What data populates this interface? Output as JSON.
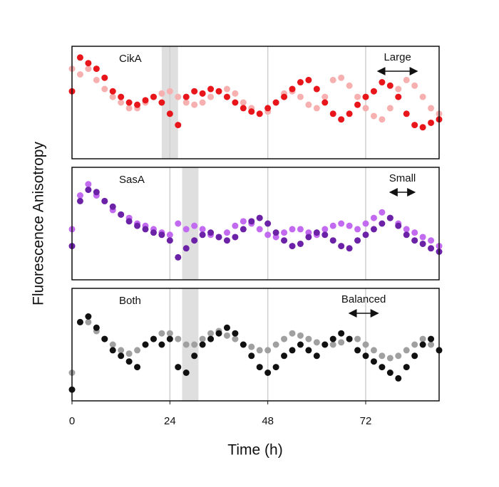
{
  "xlabel": "Time (h)",
  "ylabel": "Fluorescence Anisotropy",
  "chart_data": [
    {
      "type": "scatter",
      "title": "CikA",
      "xlim": [
        0,
        90
      ],
      "ylim": [
        0,
        1
      ],
      "xticks": [
        0,
        24,
        48,
        72
      ],
      "show_xtick_labels": false,
      "grid": true,
      "shade": [
        22,
        26
      ],
      "annotation": {
        "text": "Large",
        "x": [
          75,
          84.6
        ]
      },
      "x": [
        0,
        2,
        4,
        6,
        8,
        10,
        12,
        14,
        16,
        18,
        20,
        22,
        24,
        26,
        28,
        30,
        32,
        34,
        36,
        38,
        40,
        42,
        44,
        46,
        48,
        50,
        52,
        54,
        56,
        58,
        60,
        62,
        64,
        66,
        68,
        70,
        72,
        74,
        76,
        78,
        80,
        82,
        84,
        86,
        88,
        90
      ],
      "series": [
        {
          "color": "#f7b0b0",
          "values": [
            0.8,
            0.75,
            0.8,
            0.7,
            0.62,
            0.55,
            0.5,
            0.45,
            0.45,
            0.5,
            0.55,
            0.58,
            0.6,
            0.55,
            0.5,
            0.48,
            0.5,
            0.55,
            0.6,
            0.62,
            0.58,
            0.5,
            0.45,
            0.4,
            0.42,
            0.5,
            0.58,
            0.6,
            0.55,
            0.48,
            0.45,
            0.55,
            0.7,
            0.72,
            0.65,
            0.55,
            0.45,
            0.38,
            0.35,
            0.45,
            0.62,
            0.7,
            0.65,
            0.55,
            0.45,
            0.4
          ]
        },
        {
          "color": "#e8151b",
          "values": [
            0.6,
            0.9,
            0.85,
            0.8,
            0.72,
            0.6,
            0.55,
            0.5,
            0.48,
            0.52,
            0.55,
            0.5,
            0.4,
            0.3,
            0.55,
            0.6,
            0.58,
            0.62,
            0.6,
            0.55,
            0.5,
            0.45,
            0.42,
            0.4,
            0.45,
            0.5,
            0.55,
            0.62,
            0.68,
            0.7,
            0.62,
            0.5,
            0.4,
            0.35,
            0.4,
            0.48,
            0.55,
            0.6,
            0.68,
            0.65,
            0.55,
            0.4,
            0.3,
            0.28,
            0.32,
            0.35
          ]
        }
      ]
    },
    {
      "type": "scatter",
      "title": "SasA",
      "xlim": [
        0,
        90
      ],
      "ylim": [
        0,
        1
      ],
      "xticks": [
        0,
        24,
        48,
        72
      ],
      "show_xtick_labels": false,
      "grid": true,
      "shade": [
        27,
        31
      ],
      "annotation": {
        "text": "Small",
        "x": [
          78,
          84
        ]
      },
      "x": [
        0,
        2,
        4,
        6,
        8,
        10,
        12,
        14,
        16,
        18,
        20,
        22,
        24,
        26,
        28,
        30,
        32,
        34,
        36,
        38,
        40,
        42,
        44,
        46,
        48,
        50,
        52,
        54,
        56,
        58,
        60,
        62,
        64,
        66,
        68,
        70,
        72,
        74,
        76,
        78,
        80,
        82,
        84,
        86,
        88,
        90
      ],
      "series": [
        {
          "color": "#c26af0",
          "values": [
            0.45,
            0.75,
            0.85,
            0.75,
            0.7,
            0.62,
            0.58,
            0.55,
            0.5,
            0.48,
            0.45,
            0.42,
            0.4,
            0.5,
            0.45,
            0.48,
            0.45,
            0.4,
            0.38,
            0.42,
            0.48,
            0.52,
            0.5,
            0.45,
            0.4,
            0.38,
            0.42,
            0.45,
            0.45,
            0.42,
            0.4,
            0.45,
            0.48,
            0.5,
            0.48,
            0.45,
            0.5,
            0.55,
            0.6,
            0.55,
            0.5,
            0.45,
            0.42,
            0.38,
            0.35,
            0.3
          ]
        },
        {
          "color": "#6b22a6",
          "values": [
            0.3,
            0.7,
            0.8,
            0.78,
            0.7,
            0.65,
            0.58,
            0.52,
            0.48,
            0.45,
            0.42,
            0.4,
            0.35,
            0.2,
            0.28,
            0.35,
            0.4,
            0.42,
            0.38,
            0.35,
            0.38,
            0.45,
            0.52,
            0.55,
            0.5,
            0.42,
            0.35,
            0.3,
            0.32,
            0.38,
            0.42,
            0.4,
            0.35,
            0.3,
            0.28,
            0.35,
            0.4,
            0.45,
            0.5,
            0.55,
            0.48,
            0.4,
            0.35,
            0.32,
            0.28,
            0.25
          ]
        }
      ]
    },
    {
      "type": "scatter",
      "title": "Both",
      "xlim": [
        0,
        90
      ],
      "ylim": [
        0,
        1
      ],
      "xticks": [
        0,
        24,
        48,
        72
      ],
      "show_xtick_labels": true,
      "grid": true,
      "shade": [
        27,
        31
      ],
      "annotation": {
        "text": "Balanced",
        "x": [
          68,
          75
        ]
      },
      "x": [
        0,
        2,
        4,
        6,
        8,
        10,
        12,
        14,
        16,
        18,
        20,
        22,
        24,
        26,
        28,
        30,
        32,
        34,
        36,
        38,
        40,
        42,
        44,
        46,
        48,
        50,
        52,
        54,
        56,
        58,
        60,
        62,
        64,
        66,
        68,
        70,
        72,
        74,
        76,
        78,
        80,
        82,
        84,
        86,
        88,
        90
      ],
      "series": [
        {
          "color": "#a0a0a0",
          "values": [
            0.25,
            0.7,
            0.7,
            0.62,
            0.55,
            0.5,
            0.45,
            0.42,
            0.45,
            0.5,
            0.55,
            0.6,
            0.6,
            0.55,
            0.5,
            0.5,
            0.55,
            0.6,
            0.62,
            0.58,
            0.55,
            0.5,
            0.48,
            0.45,
            0.45,
            0.5,
            0.55,
            0.6,
            0.58,
            0.55,
            0.52,
            0.5,
            0.5,
            0.52,
            0.55,
            0.55,
            0.5,
            0.45,
            0.4,
            0.38,
            0.4,
            0.45,
            0.5,
            0.55,
            0.5,
            0.45
          ]
        },
        {
          "color": "#111111",
          "values": [
            0.1,
            0.7,
            0.75,
            0.65,
            0.55,
            0.45,
            0.4,
            0.35,
            0.3,
            0.5,
            0.55,
            0.5,
            0.55,
            0.3,
            0.25,
            0.4,
            0.5,
            0.55,
            0.6,
            0.65,
            0.6,
            0.5,
            0.4,
            0.3,
            0.25,
            0.3,
            0.4,
            0.45,
            0.5,
            0.45,
            0.4,
            0.5,
            0.55,
            0.6,
            0.55,
            0.45,
            0.4,
            0.35,
            0.3,
            0.25,
            0.2,
            0.3,
            0.4,
            0.5,
            0.55,
            0.45
          ]
        }
      ]
    }
  ]
}
